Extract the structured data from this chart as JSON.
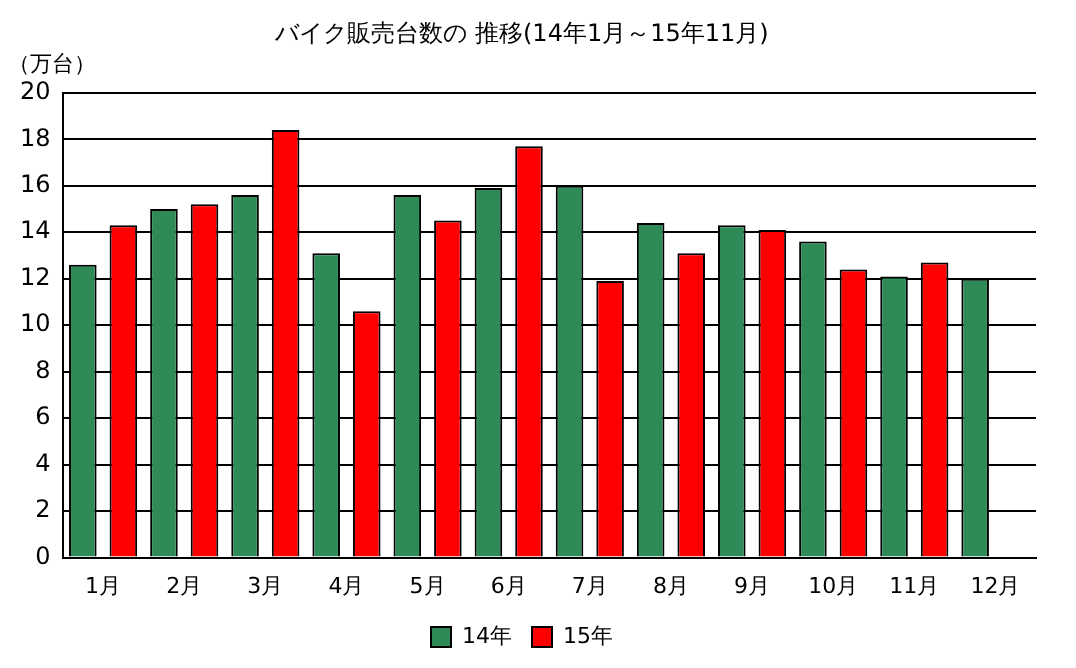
{
  "chart_data": {
    "type": "bar",
    "title": "バイク販売台数の 推移(14年1月～15年11月)",
    "ylabel": "（万台）",
    "categories": [
      "1月",
      "2月",
      "3月",
      "4月",
      "5月",
      "6月",
      "7月",
      "8月",
      "9月",
      "10月",
      "11月",
      "12月"
    ],
    "series": [
      {
        "name": "14年",
        "color": "#2e8b57",
        "values": [
          12.6,
          15.0,
          15.6,
          13.1,
          15.6,
          15.9,
          16.0,
          14.4,
          14.3,
          13.6,
          12.1,
          12.0
        ]
      },
      {
        "name": "15年",
        "color": "#ff0000",
        "values": [
          14.3,
          15.2,
          18.4,
          10.6,
          14.5,
          17.7,
          11.9,
          13.1,
          14.1,
          12.4,
          12.7,
          null
        ]
      }
    ],
    "ylim": [
      0,
      20
    ],
    "yticks": [
      0,
      2,
      4,
      6,
      8,
      10,
      12,
      14,
      16,
      18,
      20
    ],
    "grid": "y",
    "legend": "bottom"
  }
}
